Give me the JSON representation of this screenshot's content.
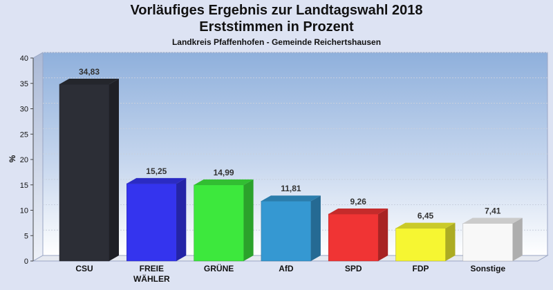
{
  "title_line1": "Vorläufiges Ergebnis zur Landtagswahl 2018",
  "title_line2": "Erststimmen in Prozent",
  "subtitle": "Landkreis Pfaffenhofen - Gemeinde Reichertshausen",
  "chart_data": {
    "type": "bar",
    "title": "Vorläufiges Ergebnis zur Landtagswahl 2018 Erststimmen in Prozent",
    "subtitle": "Landkreis Pfaffenhofen - Gemeinde Reichertshausen",
    "ylabel": "%",
    "xlabel": "",
    "ylim": [
      0,
      40
    ],
    "yticks": [
      0,
      5,
      10,
      15,
      20,
      25,
      30,
      35,
      40
    ],
    "grid": true,
    "categories": [
      "CSU",
      "FREIE WÄHLER",
      "GRÜNE",
      "AfD",
      "SPD",
      "FDP",
      "Sonstige"
    ],
    "category_label_lines": [
      [
        "CSU"
      ],
      [
        "FREIE",
        "WÄHLER"
      ],
      [
        "GRÜNE"
      ],
      [
        "AfD"
      ],
      [
        "SPD"
      ],
      [
        "FDP"
      ],
      [
        "Sonstige"
      ]
    ],
    "values": [
      34.83,
      15.25,
      14.99,
      11.81,
      9.26,
      6.45,
      7.41
    ],
    "value_labels": [
      "34,83",
      "15,25",
      "14,99",
      "11,81",
      "9,26",
      "6,45",
      "7,41"
    ],
    "colors": [
      "#2c2e36",
      "#3434ee",
      "#3de83d",
      "#3598d2",
      "#f03434",
      "#f6f632",
      "#f8f8f8"
    ]
  }
}
